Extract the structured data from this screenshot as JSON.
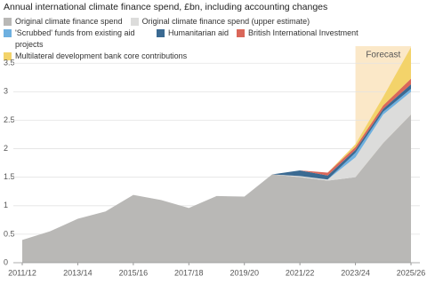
{
  "chart_data": {
    "type": "stacked_area",
    "title": "Annual international climate finance spend, £bn, including accounting changes",
    "categories": [
      "2011/12",
      null,
      "2013/14",
      null,
      "2015/16",
      null,
      "2017/18",
      null,
      "2019/20",
      null,
      "2021/22",
      null,
      "2023/24",
      null,
      "2025/26"
    ],
    "series": [
      {
        "name": "Original climate finance spend",
        "color": "#b9b8b6",
        "values": [
          0.4,
          0.55,
          0.77,
          0.9,
          1.19,
          1.1,
          0.96,
          1.17,
          1.16,
          1.55,
          1.5,
          1.44,
          1.5,
          2.1,
          2.6
        ]
      },
      {
        "name": "Original climate finance spend (upper estimate)",
        "color": "#dcdcdb",
        "values": [
          0,
          0,
          0,
          0,
          0,
          0,
          0,
          0,
          0,
          0,
          0.02,
          0.02,
          0.35,
          0.5,
          0.4
        ]
      },
      {
        "name": "'Scrubbed' funds from existing aid projects",
        "color": "#6eb0e0",
        "values": [
          0,
          0,
          0,
          0,
          0,
          0,
          0,
          0,
          0,
          0,
          0,
          0,
          0.08,
          0.05,
          0.05
        ]
      },
      {
        "name": "Humanitarian aid",
        "color": "#3b6a92",
        "values": [
          0,
          0,
          0,
          0,
          0,
          0,
          0,
          0,
          0,
          0,
          0.1,
          0.07,
          0.05,
          0.05,
          0.08
        ]
      },
      {
        "name": "British International Investment",
        "color": "#da675a",
        "values": [
          0,
          0,
          0,
          0,
          0,
          0,
          0,
          0,
          0,
          0,
          0,
          0.05,
          0.05,
          0.06,
          0.1
        ]
      },
      {
        "name": "Multilateral development bank core contributions",
        "color": "#f3d36a",
        "values": [
          0,
          0,
          0,
          0,
          0,
          0,
          0,
          0,
          0,
          0,
          0,
          0,
          0.05,
          0.15,
          0.55
        ]
      }
    ],
    "shade": {
      "label": "Forecast",
      "from": "2023/24",
      "to": "2025/26",
      "color": "#fbe8c8"
    },
    "ylim": [
      0,
      3.8
    ],
    "yticks": [
      0,
      0.5,
      1,
      1.5,
      2,
      2.5,
      3,
      3.5
    ],
    "grid": true
  }
}
